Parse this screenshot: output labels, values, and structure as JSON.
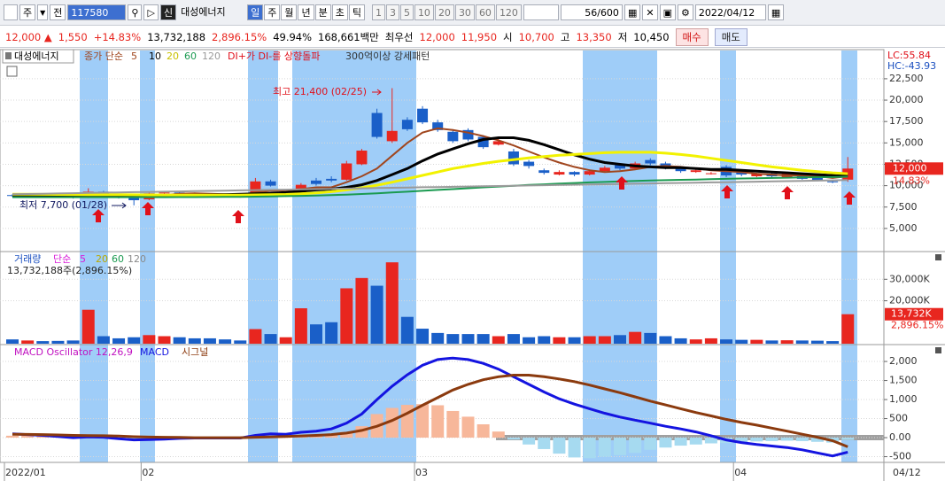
{
  "toolbar": {
    "market": "주",
    "mode": "전",
    "code": "117580",
    "tag": "신",
    "name": "대성에너지",
    "periods": [
      "일",
      "주",
      "월",
      "년",
      "분",
      "초",
      "틱"
    ],
    "intervals": [
      "1",
      "3",
      "5",
      "10",
      "20",
      "30",
      "60",
      "120"
    ],
    "count": "56/600",
    "date": "2022/04/12"
  },
  "quote": {
    "price": "12,000 ▲",
    "change": "1,550",
    "change_rate": "+14.83%",
    "volume": "13,732,188",
    "volume_rate": "2,896.15%",
    "turnover": "49.94%",
    "amount": "168,661백만",
    "best_label": "최우선",
    "ask": "12,000",
    "bid": "11,950",
    "open_label": "시",
    "open": "10,700",
    "high_label": "고",
    "high": "13,350",
    "low_label": "저",
    "low": "10,450",
    "buy": "매수",
    "sell": "매도"
  },
  "chart_data": [
    {
      "type": "candlestick",
      "name": "대성에너지",
      "legend_label": "종가 단순",
      "indicators": [
        "DI+가 DI-를 상향돌파",
        "300억이상 강세패턴"
      ],
      "annotations": {
        "high": "최고 21,400 (02/25)",
        "low": "최저 7,700 (01/28)"
      },
      "lc": "LC:55.84",
      "hc": "HC:-43.93",
      "last_label": "12,000",
      "last_rate": "14.83%",
      "up_color": "#e8261f",
      "down_color": "#1a5fc8",
      "categories": [
        "2022/01",
        null,
        null,
        null,
        null,
        null,
        null,
        null,
        null,
        "02",
        null,
        null,
        null,
        null,
        null,
        null,
        null,
        null,
        null,
        null,
        null,
        null,
        null,
        null,
        null,
        null,
        null,
        "03",
        null,
        null,
        null,
        null,
        null,
        null,
        null,
        null,
        null,
        null,
        null,
        null,
        null,
        null,
        null,
        null,
        null,
        null,
        null,
        null,
        "04",
        null,
        null,
        null,
        null,
        null,
        null,
        null
      ],
      "x_end_label": "04/12",
      "open": [
        8900,
        8800,
        8850,
        8800,
        8700,
        8600,
        9300,
        8800,
        8600,
        8400,
        9100,
        9200,
        9100,
        9000,
        8900,
        8800,
        8800,
        10500,
        8800,
        9200,
        10600,
        10800,
        10700,
        12500,
        18500,
        15200,
        17700,
        19000,
        17400,
        16300,
        16500,
        15700,
        14800,
        14000,
        12800,
        11800,
        11300,
        11600,
        11300,
        11700,
        12400,
        12000,
        13000,
        12600,
        12200,
        11600,
        11400,
        12200,
        11600,
        11100,
        11400,
        11000,
        11300,
        10900,
        10500,
        10700
      ],
      "high": [
        9000,
        8950,
        8950,
        8900,
        8800,
        9700,
        9400,
        8900,
        8700,
        9200,
        9300,
        9300,
        9200,
        9100,
        9000,
        8900,
        10900,
        10700,
        9200,
        10300,
        10900,
        11100,
        12900,
        14300,
        19000,
        21400,
        18000,
        19300,
        17700,
        16600,
        16700,
        15900,
        15500,
        14300,
        13000,
        12000,
        11800,
        11700,
        11900,
        12300,
        12600,
        12800,
        13200,
        12800,
        12300,
        12000,
        11600,
        12400,
        11800,
        11500,
        11500,
        11600,
        11400,
        11000,
        10700,
        13350
      ],
      "low": [
        8700,
        8700,
        8700,
        8600,
        8500,
        8550,
        8700,
        8500,
        7700,
        8300,
        9000,
        9000,
        8900,
        8800,
        8700,
        8600,
        8700,
        9900,
        8700,
        9100,
        10000,
        10400,
        10600,
        12400,
        15500,
        15000,
        16400,
        17200,
        16300,
        15000,
        15200,
        14300,
        14700,
        12300,
        12000,
        11300,
        11200,
        11100,
        11200,
        11600,
        11800,
        11900,
        12400,
        11900,
        11500,
        11500,
        11300,
        11000,
        11100,
        11000,
        10900,
        10900,
        10700,
        10500,
        10300,
        10450
      ],
      "close": [
        8800,
        8850,
        8800,
        8700,
        8600,
        9300,
        8800,
        8600,
        8300,
        9100,
        9200,
        9100,
        9000,
        8900,
        8800,
        8700,
        10500,
        10000,
        9100,
        10100,
        10200,
        10600,
        12600,
        14100,
        15700,
        16400,
        16600,
        17400,
        16500,
        15200,
        15400,
        14500,
        15200,
        12500,
        12300,
        11500,
        11600,
        11300,
        11700,
        12100,
        12000,
        12600,
        12600,
        12100,
        11700,
        11800,
        11450,
        11200,
        11300,
        11400,
        11100,
        11400,
        10800,
        10600,
        10450,
        12000
      ],
      "series": [
        {
          "name": "5",
          "color": "#a0461e",
          "values": [
            8850,
            8850,
            8830,
            8800,
            8780,
            8850,
            8880,
            8850,
            8750,
            8800,
            8900,
            9050,
            9100,
            9050,
            9000,
            8950,
            9200,
            9400,
            9450,
            9600,
            9800,
            9800,
            10400,
            11100,
            12000,
            13500,
            15000,
            16200,
            16700,
            16500,
            16200,
            15800,
            15300,
            14700,
            14000,
            13300,
            12700,
            12200,
            11800,
            11600,
            11700,
            11900,
            12200,
            12300,
            12200,
            12000,
            11800,
            11700,
            11600,
            11400,
            11300,
            11200,
            11200,
            11100,
            10900,
            11100
          ]
        },
        {
          "name": "10",
          "color": "#000000",
          "values": [
            8900,
            8900,
            8880,
            8860,
            8840,
            8830,
            8830,
            8820,
            8800,
            8800,
            8830,
            8850,
            8880,
            8920,
            8960,
            9000,
            9050,
            9100,
            9200,
            9350,
            9500,
            9600,
            9800,
            10100,
            10600,
            11300,
            12000,
            12900,
            13700,
            14300,
            14900,
            15400,
            15600,
            15600,
            15300,
            14800,
            14200,
            13600,
            13100,
            12700,
            12500,
            12300,
            12200,
            12100,
            12100,
            12000,
            11900,
            11900,
            11800,
            11700,
            11600,
            11500,
            11400,
            11300,
            11200,
            11100
          ]
        },
        {
          "name": "20",
          "color": "#f2f200",
          "values": [
            9000,
            9000,
            8990,
            8980,
            8970,
            8960,
            8950,
            8940,
            8930,
            8920,
            8910,
            8900,
            8900,
            8900,
            8900,
            8900,
            8920,
            8950,
            8980,
            9050,
            9150,
            9300,
            9500,
            9750,
            10050,
            10400,
            10800,
            11200,
            11600,
            12000,
            12300,
            12600,
            12850,
            13050,
            13250,
            13400,
            13550,
            13650,
            13750,
            13850,
            13900,
            13900,
            13900,
            13800,
            13650,
            13450,
            13200,
            12950,
            12700,
            12450,
            12200,
            12000,
            11800,
            11650,
            11500,
            11400
          ]
        },
        {
          "name": "60",
          "color": "#1a9a50",
          "values": [
            8650,
            8650,
            8650,
            8650,
            8650,
            8650,
            8650,
            8650,
            8650,
            8650,
            8650,
            8660,
            8670,
            8680,
            8690,
            8700,
            8720,
            8750,
            8780,
            8810,
            8850,
            8900,
            8960,
            9030,
            9110,
            9200,
            9300,
            9400,
            9500,
            9600,
            9700,
            9800,
            9900,
            9990,
            10080,
            10160,
            10240,
            10310,
            10380,
            10440,
            10500,
            10550,
            10600,
            10640,
            10680,
            10720,
            10760,
            10800,
            10840,
            10870,
            10900,
            10930,
            10960,
            10990,
            11010,
            11050
          ]
        },
        {
          "name": "120",
          "color": "#9a9a9a",
          "values": [
            9000,
            9030,
            9060,
            9090,
            9120,
            9150,
            9180,
            9210,
            9240,
            9270,
            9300,
            9330,
            9360,
            9390,
            9420,
            9450,
            9480,
            9510,
            9540,
            9570,
            9600,
            9630,
            9660,
            9690,
            9720,
            9750,
            9780,
            9810,
            9840,
            9870,
            9900,
            9930,
            9960,
            9990,
            10020,
            10050,
            10080,
            10110,
            10140,
            10170,
            10200,
            10230,
            10260,
            10290,
            10320,
            10350,
            10380,
            10410,
            10440,
            10470,
            10500,
            10530,
            10560,
            10590,
            10620,
            10650
          ]
        }
      ],
      "ylim": [
        2400,
        25700
      ],
      "yticks": [
        {
          "value": 5000,
          "label": "5,000"
        },
        {
          "value": 7500,
          "label": "7,500"
        },
        {
          "value": 10000,
          "label": "10,000"
        },
        {
          "value": 12500,
          "label": "12,500"
        },
        {
          "value": 15000,
          "label": "15,000"
        },
        {
          "value": 17500,
          "label": "17,500"
        },
        {
          "value": 20000,
          "label": "20,000"
        },
        {
          "value": 22500,
          "label": "22,500"
        }
      ],
      "grid": true
    },
    {
      "type": "bar",
      "title": "거래량",
      "legend_label": "단순",
      "legend": [
        {
          "name": "5",
          "color": "#d81bd8"
        },
        {
          "name": "20",
          "color": "#b8a800"
        },
        {
          "name": "60",
          "color": "#1a9a50"
        },
        {
          "name": "120",
          "color": "#8a8a8a"
        }
      ],
      "summary": "13,732,188주(2,896.15%)",
      "values": [
        2000,
        1500,
        1200,
        1300,
        1500,
        15800,
        3500,
        2500,
        3000,
        4000,
        3500,
        3000,
        2500,
        2500,
        2000,
        1500,
        6800,
        4500,
        3000,
        16500,
        9000,
        10000,
        25800,
        30600,
        27000,
        37900,
        12500,
        7000,
        5000,
        4500,
        4500,
        4500,
        3500,
        4500,
        3000,
        3500,
        3000,
        3000,
        3500,
        3500,
        4000,
        5500,
        5000,
        3500,
        2500,
        2000,
        2500,
        2000,
        1800,
        1800,
        1500,
        1600,
        1500,
        1400,
        1200,
        13732
      ],
      "last_label": "13,732K",
      "last_rate": "2,896.15%",
      "ylim": [
        0,
        42500
      ],
      "yticks": [
        {
          "value": 20000,
          "label": "20,000K"
        },
        {
          "value": 30000,
          "label": "30,000K"
        }
      ],
      "grid": true
    },
    {
      "type": "macd",
      "title": "MACD Oscillator 12,26,9",
      "oscillator": [
        50,
        60,
        40,
        20,
        0,
        30,
        20,
        -30,
        -50,
        -40,
        -30,
        -20,
        -10,
        -10,
        -10,
        -10,
        20,
        30,
        20,
        60,
        80,
        90,
        150,
        300,
        620,
        780,
        860,
        880,
        850,
        700,
        550,
        350,
        160,
        -50,
        -180,
        -300,
        -420,
        -520,
        -540,
        -500,
        -460,
        -400,
        -320,
        -260,
        -210,
        -180,
        -150,
        -140,
        -120,
        -100,
        -90,
        -80,
        -90,
        -110,
        -130,
        -60
      ],
      "positive_color": "#f7b79a",
      "negative_color": "#a6daf0",
      "series": [
        {
          "name": "MACD",
          "color": "#1414e0",
          "values": [
            100,
            80,
            60,
            30,
            0,
            20,
            10,
            -30,
            -60,
            -50,
            -40,
            -20,
            -10,
            -10,
            -10,
            -10,
            60,
            100,
            90,
            140,
            170,
            230,
            380,
            620,
            1000,
            1350,
            1650,
            1900,
            2050,
            2090,
            2050,
            1950,
            1800,
            1600,
            1400,
            1200,
            1020,
            880,
            760,
            640,
            540,
            460,
            380,
            300,
            230,
            150,
            50,
            -60,
            -130,
            -180,
            -220,
            -260,
            -320,
            -400,
            -480,
            -380
          ]
        },
        {
          "name": "시그널",
          "color": "#8b3a0e",
          "values": [
            90,
            85,
            80,
            70,
            60,
            55,
            50,
            40,
            25,
            15,
            10,
            5,
            0,
            0,
            0,
            0,
            10,
            20,
            30,
            45,
            60,
            80,
            120,
            190,
            300,
            450,
            640,
            850,
            1050,
            1250,
            1400,
            1520,
            1600,
            1640,
            1640,
            1600,
            1540,
            1470,
            1380,
            1280,
            1180,
            1070,
            960,
            860,
            760,
            660,
            570,
            480,
            400,
            330,
            250,
            170,
            90,
            10,
            -80,
            -240
          ]
        }
      ],
      "ylim": [
        -650,
        2420
      ],
      "yticks": [
        -500,
        {
          "value": 0,
          "label": "0.00"
        },
        500,
        {
          "value": 1000,
          "label": "1,000"
        },
        {
          "value": 1500,
          "label": "1,500"
        },
        {
          "value": 2000,
          "label": "2,000"
        }
      ],
      "grid": true
    }
  ]
}
